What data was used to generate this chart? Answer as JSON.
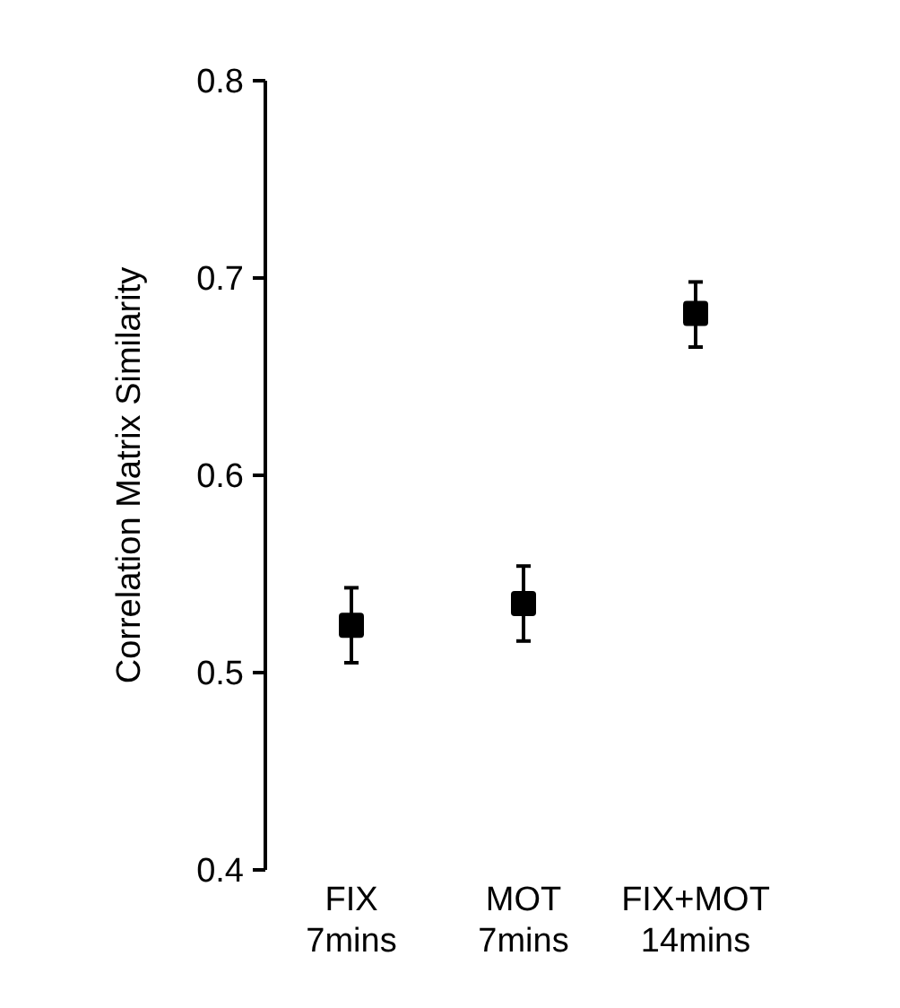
{
  "chart_data": {
    "type": "scatter",
    "ylabel": "Correlation Matrix Similarity",
    "categories": [
      "FIX\n7mins",
      "MOT\n7mins",
      "FIX+MOT\n14mins"
    ],
    "values": [
      0.524,
      0.535,
      0.682
    ],
    "errors": [
      [
        0.505,
        0.543
      ],
      [
        0.516,
        0.554
      ],
      [
        0.665,
        0.698
      ]
    ],
    "color": "#000000",
    "marker": "square",
    "ylim": [
      0.4,
      0.8
    ],
    "yticks": [
      0.4,
      0.5,
      0.6,
      0.7,
      0.8
    ]
  }
}
